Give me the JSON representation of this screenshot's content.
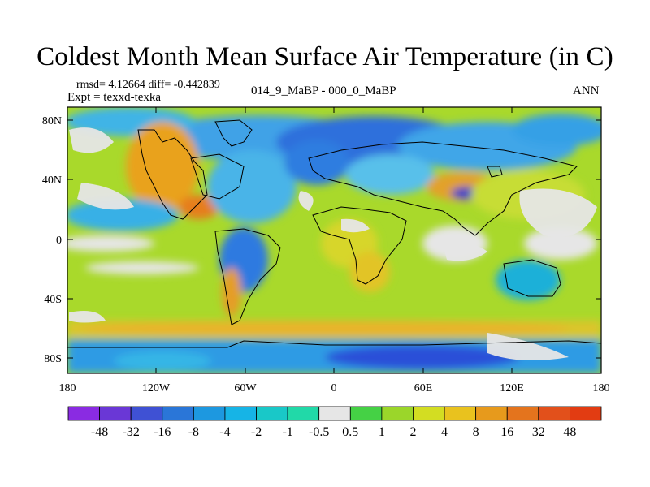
{
  "title": "Coldest Month Mean Surface Air Temperature (in C)",
  "stats": "rmsd= 4.12664 diff= -0.442839",
  "experiment": "Expt = texxd-texka",
  "comparison": "014_9_MaBP - 000_0_MaBP",
  "season": "ANN",
  "y_axis_labels": [
    "80N",
    "40N",
    "0",
    "40S",
    "80S"
  ],
  "x_axis_labels": [
    "180",
    "120W",
    "60W",
    "0",
    "60E",
    "120E",
    "180"
  ],
  "legend": {
    "labels": [
      "-48",
      "-32",
      "-16",
      "-8",
      "-4",
      "-2",
      "-1",
      "-0.5",
      "0.5",
      "1",
      "2",
      "4",
      "8",
      "16",
      "32",
      "48"
    ],
    "colors": [
      "#8a2be2",
      "#6a37d6",
      "#3f51d4",
      "#2a76d8",
      "#1d98e0",
      "#16b4e6",
      "#19c8c8",
      "#21d9a8",
      "#e6e6e6",
      "#45d145",
      "#9bd62a",
      "#d3dd22",
      "#e9c21e",
      "#e79a1c",
      "#e4741d",
      "#e2501b",
      "#e23c12"
    ]
  }
}
